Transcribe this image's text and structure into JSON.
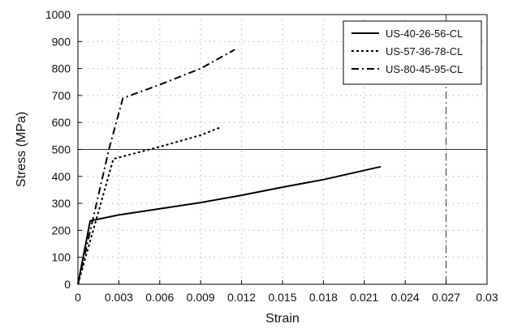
{
  "chart_data": {
    "type": "line",
    "xlabel": "Strain",
    "ylabel": "Stress (MPa)",
    "xlim": [
      0,
      0.03
    ],
    "ylim": [
      0,
      1000
    ],
    "x_ticks": [
      "0",
      "0.003",
      "0.006",
      "0.009",
      "0.012",
      "0.015",
      "0.018",
      "0.021",
      "0.024",
      "0.027",
      "0.03"
    ],
    "y_ticks": [
      "0",
      "100",
      "200",
      "300",
      "400",
      "500",
      "600",
      "700",
      "800",
      "900",
      "1000"
    ],
    "grid": "dotted",
    "reference_lines": [
      {
        "axis": "y",
        "value": 500,
        "style": "solid"
      },
      {
        "axis": "x",
        "value": 0.027,
        "style": "dash-dot"
      }
    ],
    "legend_position": "top-right",
    "series": [
      {
        "name": "US-40-26-56-CL",
        "style": "solid",
        "color": "#000000",
        "points": [
          [
            0,
            0
          ],
          [
            0.0009,
            235
          ],
          [
            0.003,
            257
          ],
          [
            0.006,
            280
          ],
          [
            0.009,
            303
          ],
          [
            0.012,
            330
          ],
          [
            0.015,
            360
          ],
          [
            0.018,
            388
          ],
          [
            0.0222,
            436
          ]
        ]
      },
      {
        "name": "US-57-36-78-CL",
        "style": "dotted",
        "color": "#000000",
        "points": [
          [
            0,
            0
          ],
          [
            0.0026,
            465
          ],
          [
            0.006,
            510
          ],
          [
            0.009,
            553
          ],
          [
            0.0105,
            583
          ]
        ]
      },
      {
        "name": "US-80-45-95-CL",
        "style": "dash-dot",
        "color": "#000000",
        "points": [
          [
            0,
            0
          ],
          [
            0.0023,
            505
          ],
          [
            0.0033,
            690
          ],
          [
            0.006,
            740
          ],
          [
            0.009,
            800
          ],
          [
            0.0115,
            870
          ]
        ]
      }
    ]
  }
}
